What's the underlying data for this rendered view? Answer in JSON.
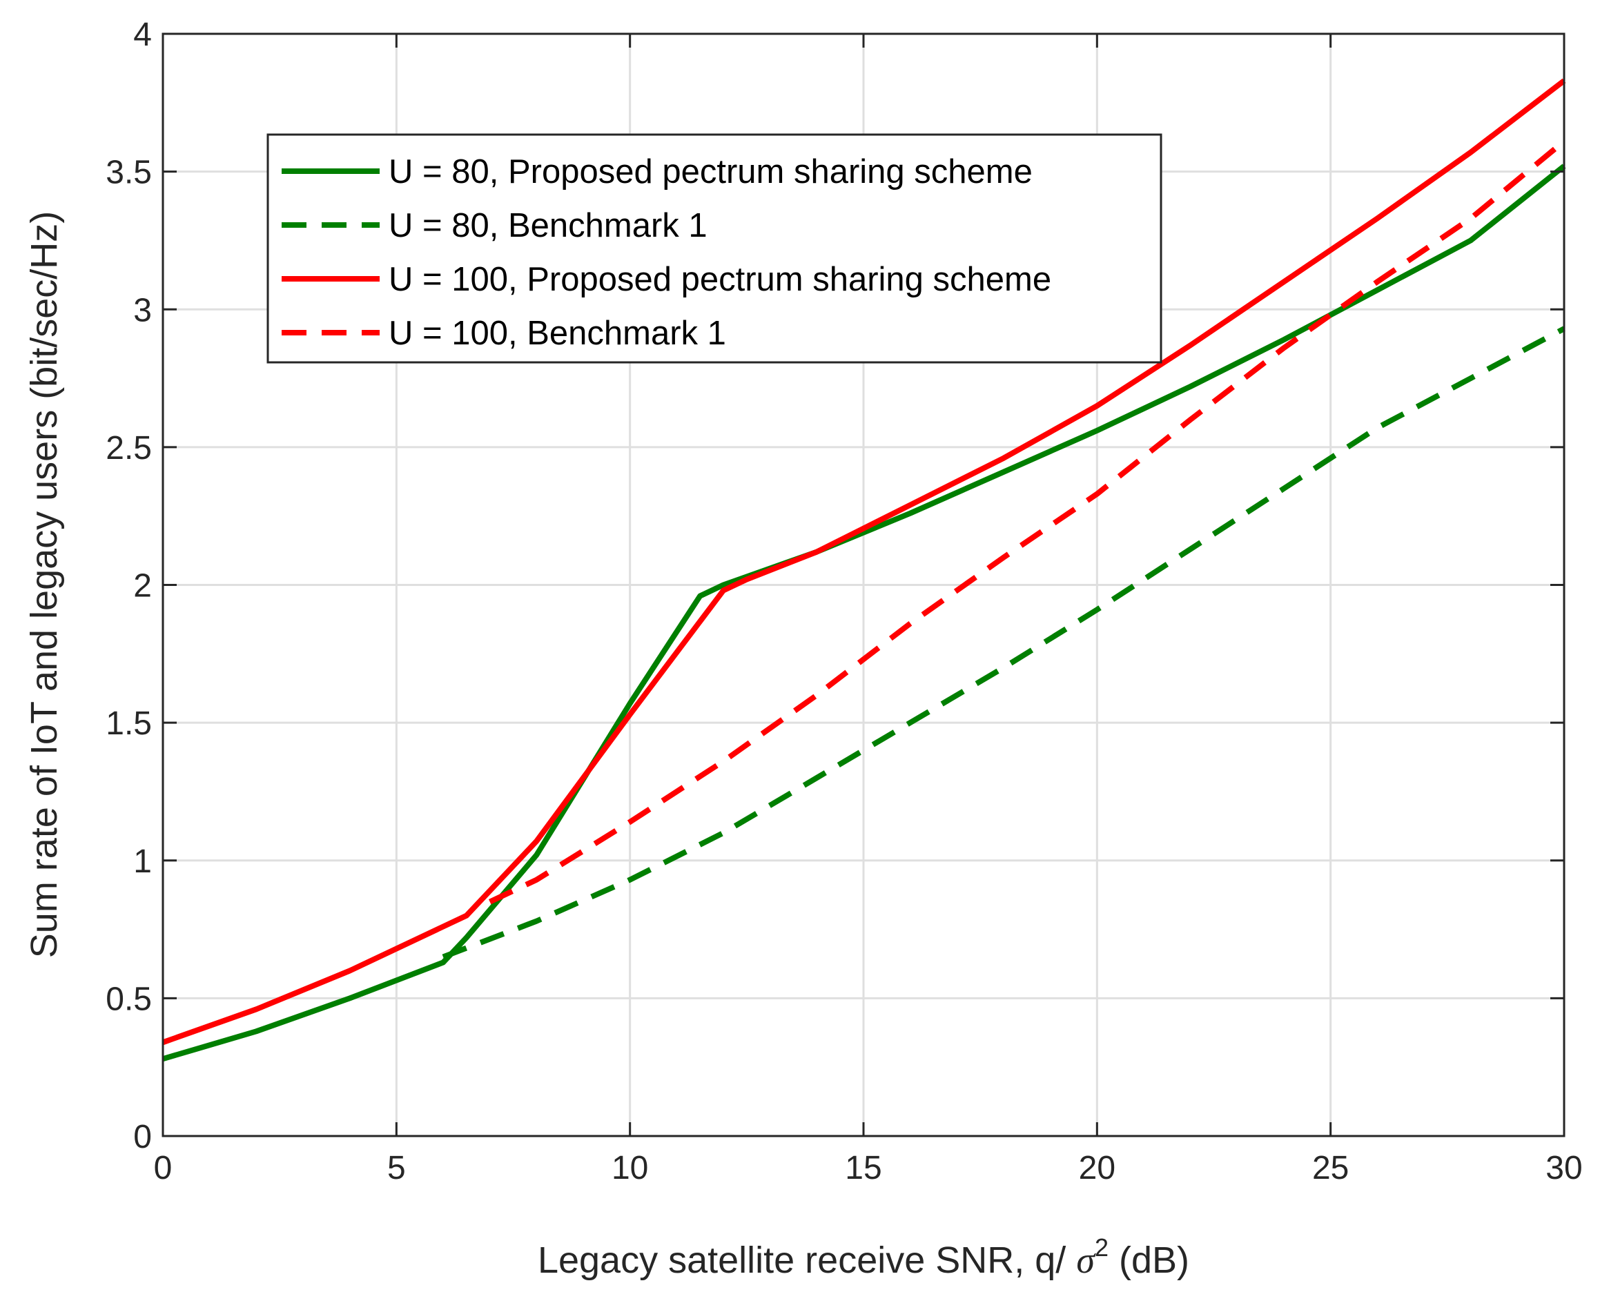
{
  "chart_data": {
    "type": "line",
    "title": "",
    "xlabel_main": "Legacy satellite receive SNR, q/ ",
    "xlabel_symbol": "σ",
    "xlabel_power": "2",
    "xlabel_unit": " (dB)",
    "ylabel": "Sum rate of IoT and legacy users (bit/sec/Hz)",
    "xlim": [
      0,
      30
    ],
    "ylim": [
      0,
      4
    ],
    "xticks": [
      0,
      5,
      10,
      15,
      20,
      25,
      30
    ],
    "yticks": [
      0,
      0.5,
      1,
      1.5,
      2,
      2.5,
      3,
      3.5,
      4
    ],
    "ytick_labels": [
      "0",
      "0.5",
      "1",
      "1.5",
      "2",
      "2.5",
      "3",
      "3.5",
      "4"
    ],
    "grid": true,
    "legend_position": "upper-left",
    "series": [
      {
        "name": "U = 80, Proposed pectrum sharing scheme",
        "color": "#007f00",
        "dash": "solid",
        "x": [
          0,
          2,
          4,
          6,
          6.5,
          8,
          10,
          11.5,
          12,
          14,
          16,
          18,
          20,
          22,
          24,
          26,
          28,
          30
        ],
        "y": [
          0.28,
          0.38,
          0.5,
          0.63,
          0.72,
          1.02,
          1.57,
          1.96,
          2.0,
          2.12,
          2.26,
          2.41,
          2.56,
          2.72,
          2.89,
          3.07,
          3.25,
          3.52
        ]
      },
      {
        "name": "U = 80, Benchmark 1",
        "color": "#007f00",
        "dash": "dashed",
        "x": [
          6,
          8,
          10,
          12,
          14,
          16,
          18,
          20,
          22,
          24,
          26,
          28,
          30
        ],
        "y": [
          0.65,
          0.78,
          0.93,
          1.1,
          1.3,
          1.5,
          1.7,
          1.91,
          2.13,
          2.35,
          2.57,
          2.75,
          2.93
        ]
      },
      {
        "name": "U = 100, Proposed pectrum sharing scheme",
        "color": "#ff0000",
        "dash": "solid",
        "x": [
          0,
          2,
          4,
          6.5,
          8,
          10,
          12,
          12.5,
          14,
          16,
          18,
          20,
          22,
          24,
          26,
          28,
          30
        ],
        "y": [
          0.34,
          0.46,
          0.6,
          0.8,
          1.07,
          1.53,
          1.98,
          2.02,
          2.12,
          2.29,
          2.46,
          2.65,
          2.87,
          3.1,
          3.33,
          3.57,
          3.83
        ]
      },
      {
        "name": "U = 100, Benchmark 1",
        "color": "#ff0000",
        "dash": "dashed",
        "x": [
          7,
          8,
          10,
          12,
          14,
          16,
          18,
          20,
          22,
          24,
          26,
          28,
          30
        ],
        "y": [
          0.85,
          0.93,
          1.14,
          1.36,
          1.6,
          1.86,
          2.1,
          2.33,
          2.6,
          2.86,
          3.1,
          3.33,
          3.61
        ]
      }
    ]
  }
}
